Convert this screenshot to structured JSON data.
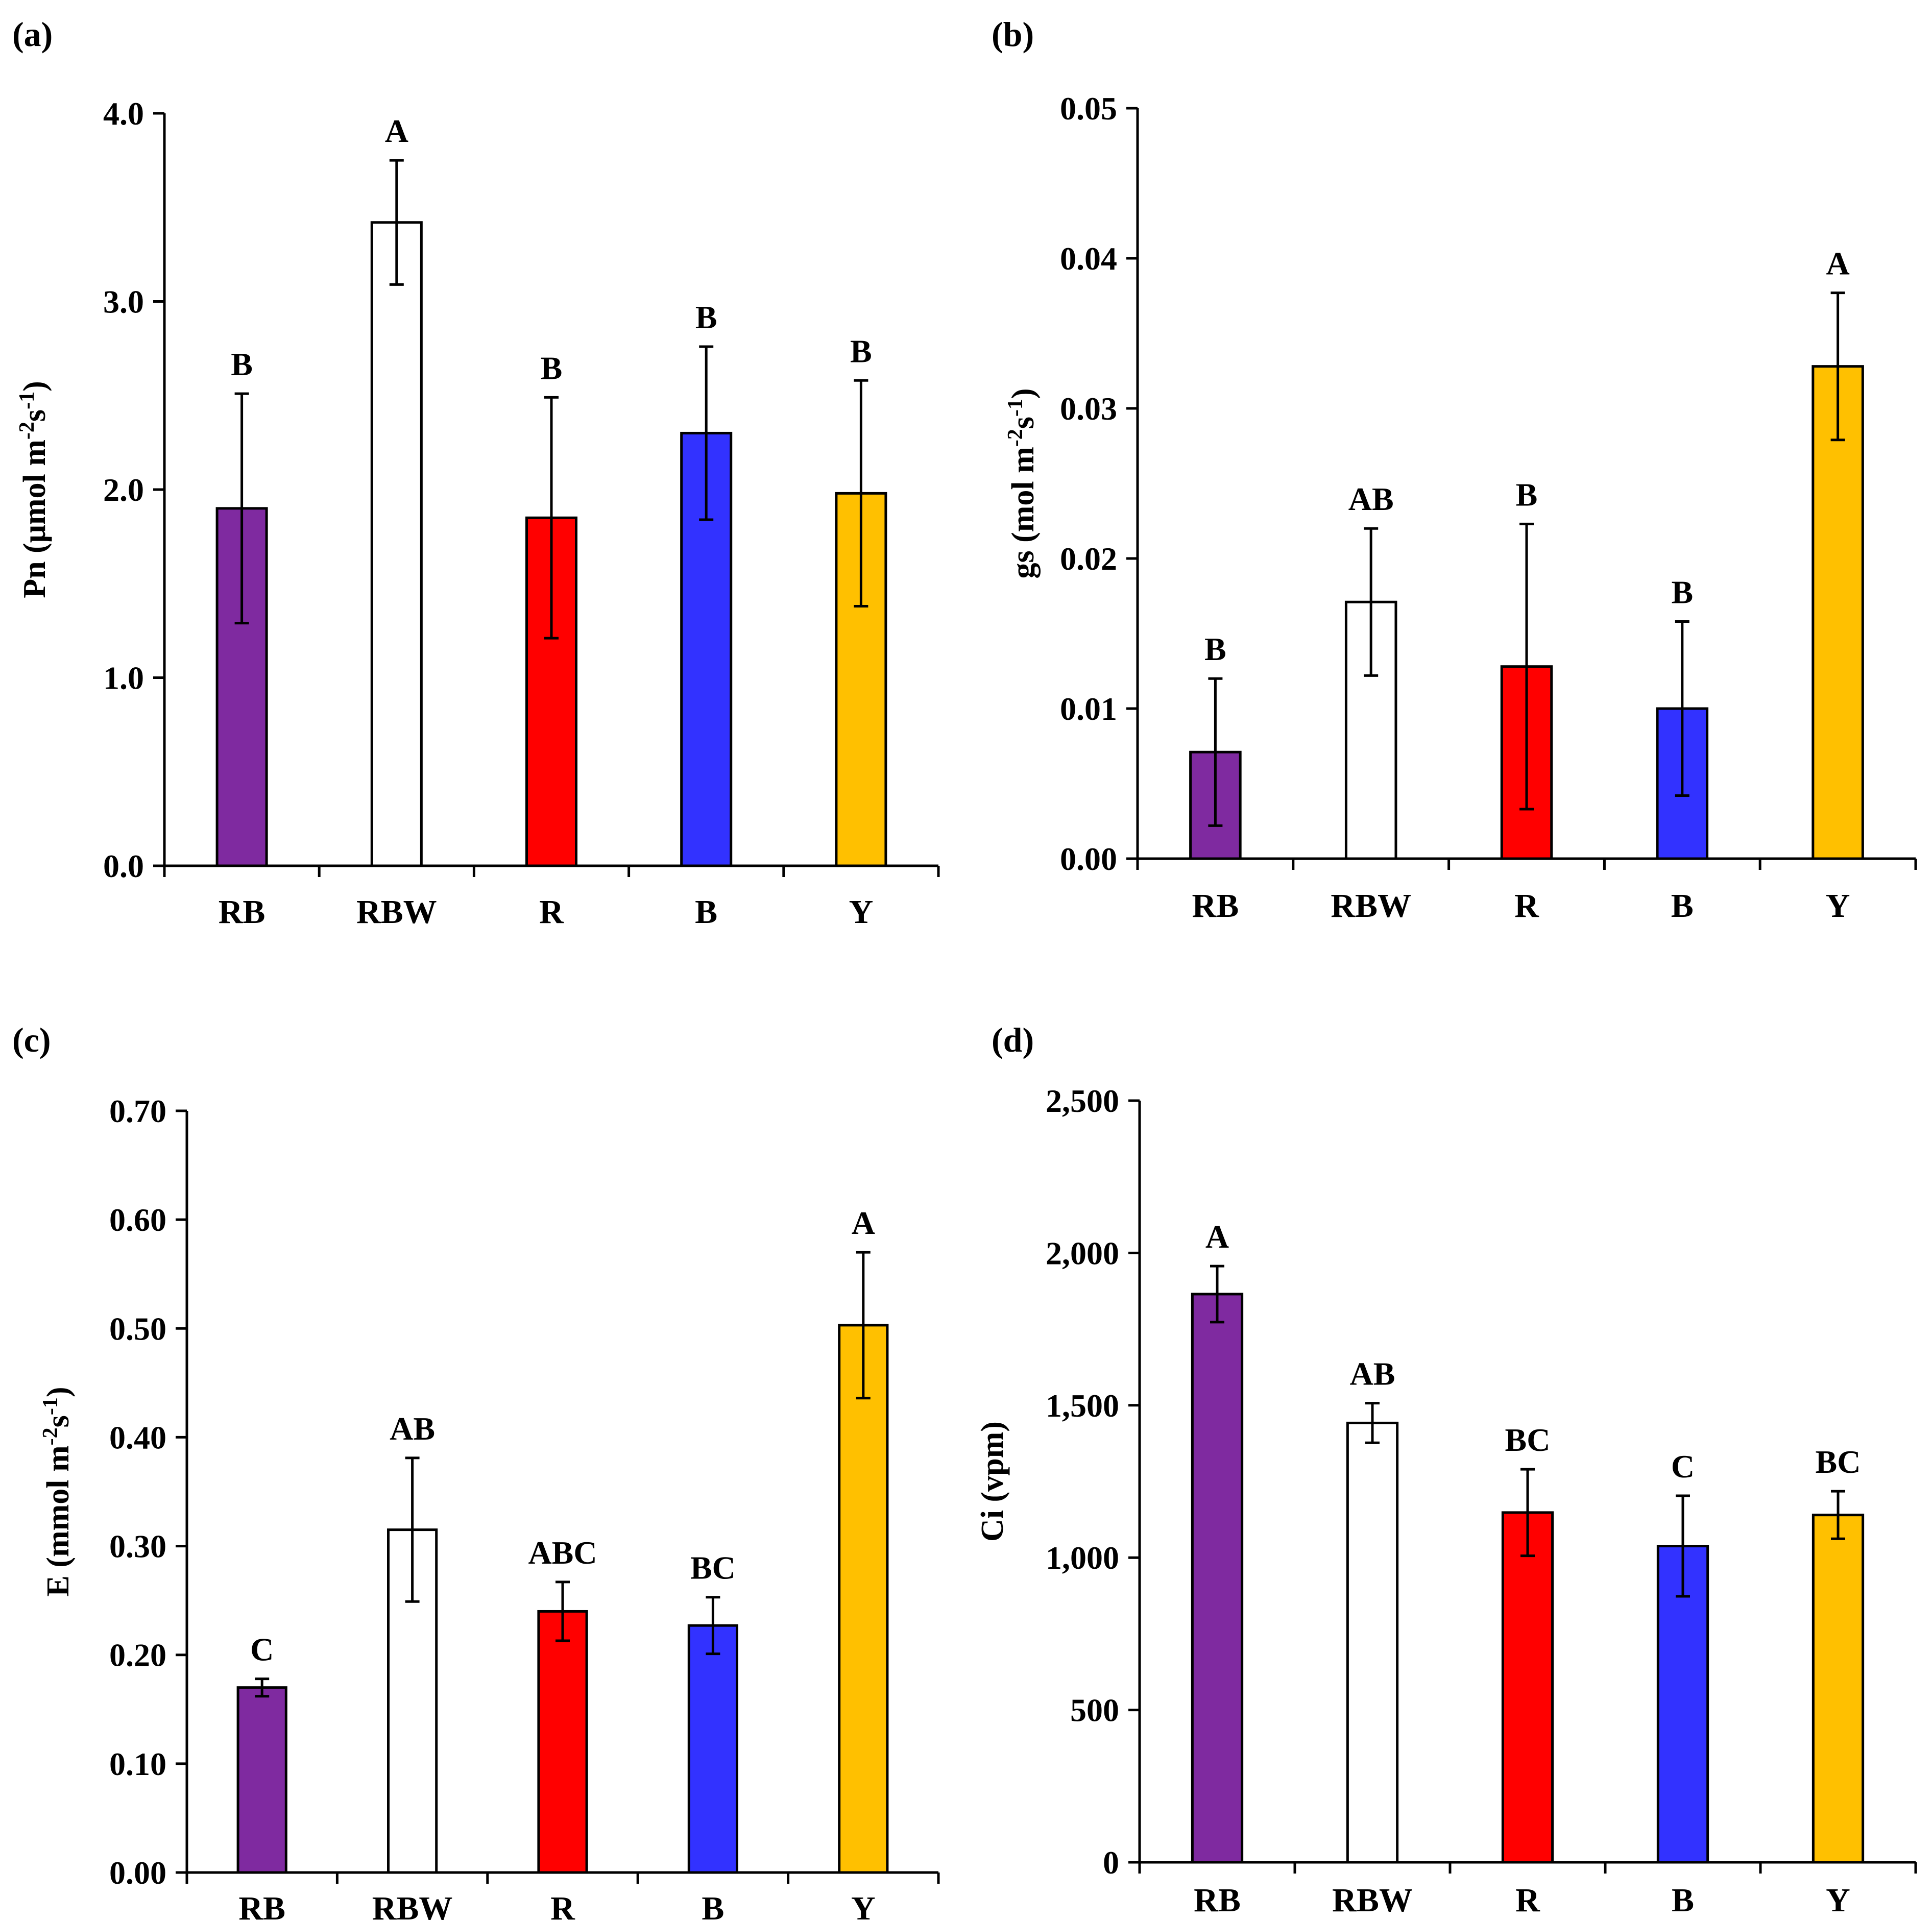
{
  "figure": {
    "colors": {
      "RB": "#7f2aa0",
      "RBW": "#ffffff",
      "R": "#ff0000",
      "B": "#3232ff",
      "Y": "#ffc000",
      "outline": "#000000"
    }
  },
  "chart_data": [
    {
      "type": "bar",
      "panel": "(a)",
      "ylabel": "Pn (μmol m",
      "ylabel_sup1": "-2",
      "ylabel_mid": "s",
      "ylabel_sup2": "-1",
      "ylabel_end": ")",
      "categories": [
        "RB",
        "RBW",
        "R",
        "B",
        "Y"
      ],
      "values": [
        1.9,
        3.42,
        1.85,
        2.3,
        1.98
      ],
      "errors": [
        0.61,
        0.33,
        0.64,
        0.46,
        0.6
      ],
      "letters": [
        "B",
        "A",
        "B",
        "B",
        "B"
      ],
      "ylim": [
        0,
        4
      ],
      "yticks": [
        "0.0",
        "1.0",
        "2.0",
        "3.0",
        "4.0"
      ]
    },
    {
      "type": "bar",
      "panel": "(b)",
      "ylabel": "gs (mol m",
      "ylabel_sup1": "-2",
      "ylabel_mid": "s",
      "ylabel_sup2": "-1",
      "ylabel_end": ")",
      "categories": [
        "RB",
        "RBW",
        "R",
        "B",
        "Y"
      ],
      "values": [
        0.0071,
        0.0171,
        0.0128,
        0.01,
        0.0328
      ],
      "errors": [
        0.0049,
        0.0049,
        0.0095,
        0.0058,
        0.0049
      ],
      "letters": [
        "B",
        "AB",
        "B",
        "B",
        "A"
      ],
      "ylim": [
        0,
        0.05
      ],
      "yticks": [
        "0.00",
        "0.01",
        "0.02",
        "0.03",
        "0.04",
        "0.05"
      ]
    },
    {
      "type": "bar",
      "panel": "(c)",
      "ylabel": "E (mmol m",
      "ylabel_sup1": "-2",
      "ylabel_mid": "s",
      "ylabel_sup2": "-1",
      "ylabel_end": ")",
      "categories": [
        "RB",
        "RBW",
        "R",
        "B",
        "Y"
      ],
      "values": [
        0.17,
        0.315,
        0.24,
        0.227,
        0.503
      ],
      "errors": [
        0.008,
        0.066,
        0.027,
        0.026,
        0.067
      ],
      "letters": [
        "C",
        "AB",
        "ABC",
        "BC",
        "A"
      ],
      "ylim": [
        0,
        0.7
      ],
      "yticks": [
        "0.00",
        "0.10",
        "0.20",
        "0.30",
        "0.40",
        "0.50",
        "0.60",
        "0.70"
      ]
    },
    {
      "type": "bar",
      "panel": "(d)",
      "ylabel": "Ci (vpm)",
      "ylabel_sup1": "",
      "ylabel_mid": "",
      "ylabel_sup2": "",
      "ylabel_end": "",
      "categories": [
        "RB",
        "RBW",
        "R",
        "B",
        "Y"
      ],
      "values": [
        1865,
        1442,
        1148,
        1038,
        1140
      ],
      "errors": [
        92,
        65,
        142,
        165,
        78
      ],
      "letters": [
        "A",
        "AB",
        "BC",
        "C",
        "BC"
      ],
      "ylim": [
        0,
        2500
      ],
      "yticks": [
        "0",
        "500",
        "1,000",
        "1,500",
        "2,000",
        "2,500"
      ]
    }
  ]
}
